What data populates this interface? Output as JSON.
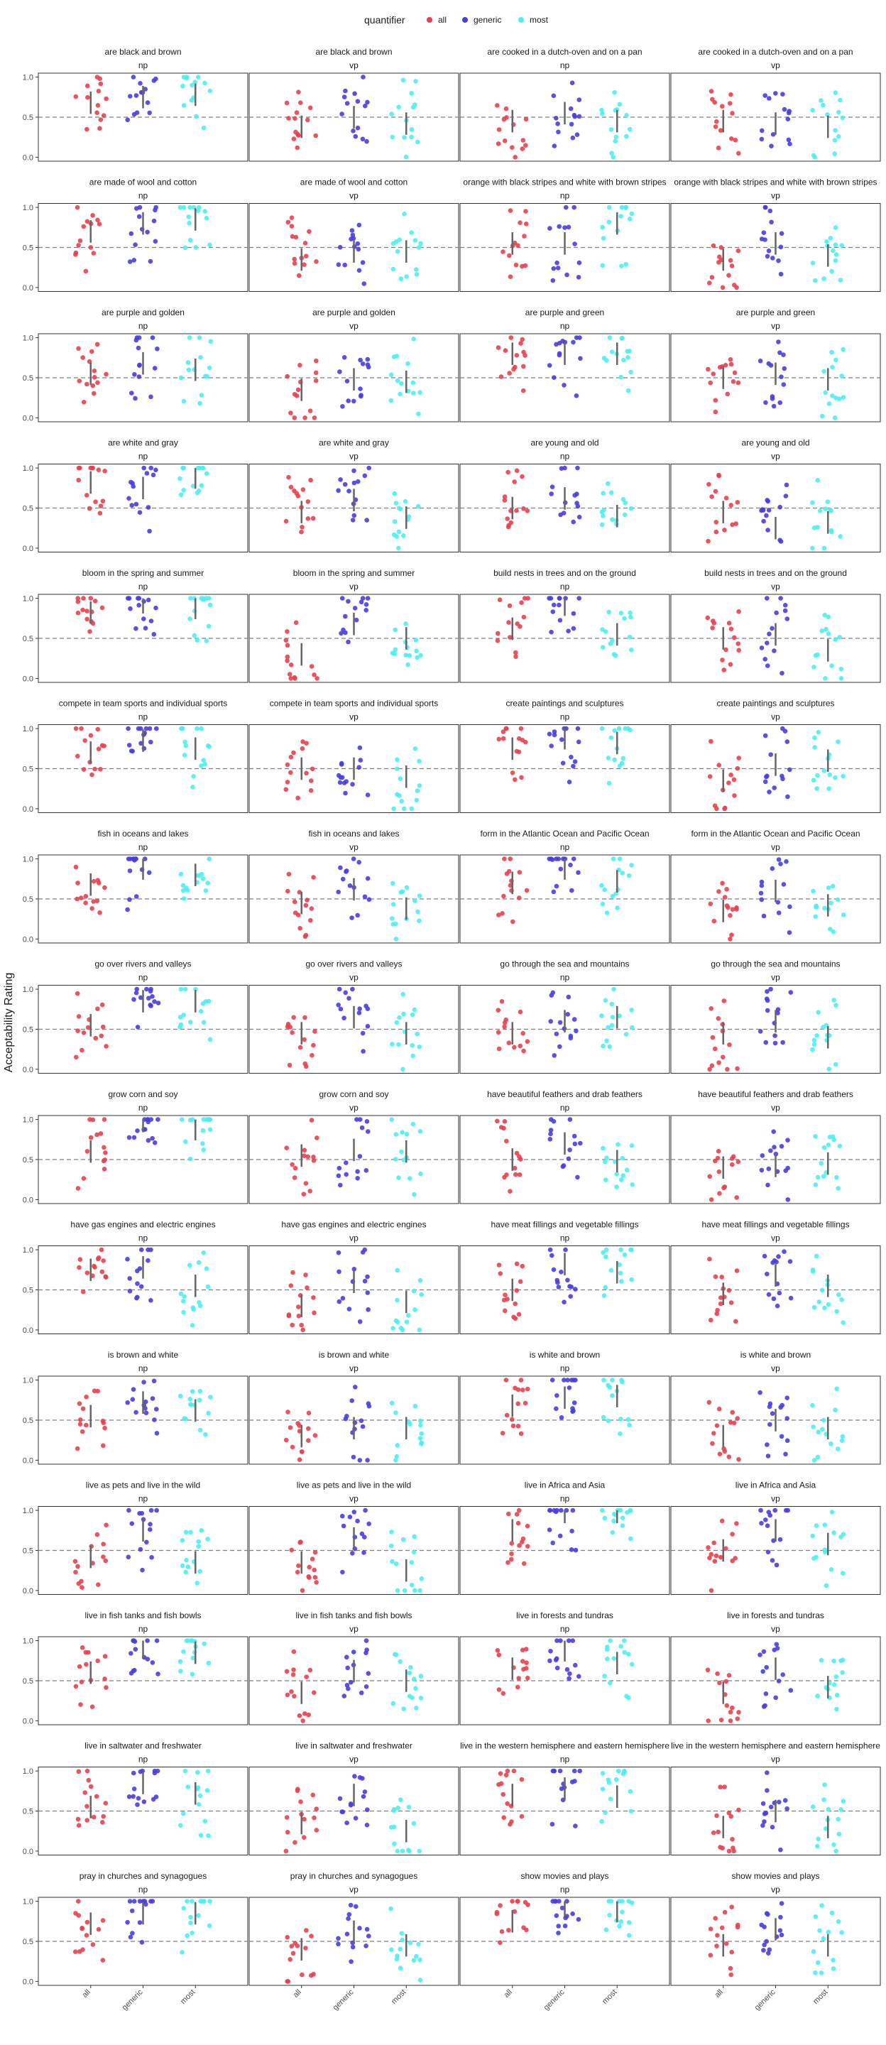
{
  "chart_data": {
    "type": "scatter",
    "ylabel": "Acceptability Rating",
    "ylim": [
      0,
      1
    ],
    "yticks": [
      "0.0",
      "0.5",
      "1.0"
    ],
    "reference_line": 0.5,
    "categories": [
      "all",
      "generic",
      "most"
    ],
    "legend": {
      "title": "quantifier",
      "placement": "top",
      "items": [
        {
          "label": "all",
          "color": "#e8404f"
        },
        {
          "label": "generic",
          "color": "#4a3de0"
        },
        {
          "label": "most",
          "color": "#4df0ee"
        }
      ]
    },
    "colors": {
      "all": "#e8404f",
      "generic": "#4a3de0",
      "most": "#4df0ee",
      "summary": "#666666",
      "dashed": "#7f7f7f"
    },
    "panels": [
      {
        "title": "are black and brown",
        "subtitle": "np",
        "median": [
          0.68,
          0.75,
          0.78
        ]
      },
      {
        "title": "are black and brown",
        "subtitle": "vp",
        "median": [
          0.38,
          0.5,
          0.42
        ]
      },
      {
        "title": "are cooked in a dutch-oven and on a pan",
        "subtitle": "np",
        "median": [
          0.45,
          0.55,
          0.45
        ]
      },
      {
        "title": "are cooked in a dutch-oven and on a pan",
        "subtitle": "vp",
        "median": [
          0.45,
          0.42,
          0.38
        ]
      },
      {
        "title": "are made of wool and cotton",
        "subtitle": "np",
        "median": [
          0.7,
          0.8,
          0.85
        ]
      },
      {
        "title": "are made of wool and cotton",
        "subtitle": "vp",
        "median": [
          0.35,
          0.45,
          0.45
        ]
      },
      {
        "title": "orange with black stripes and white with brown stripes",
        "subtitle": "np",
        "median": [
          0.55,
          0.55,
          0.8
        ]
      },
      {
        "title": "orange with black stripes and white with brown stripes",
        "subtitle": "vp",
        "median": [
          0.35,
          0.55,
          0.4
        ]
      },
      {
        "title": "are purple and golden",
        "subtitle": "np",
        "median": [
          0.55,
          0.68,
          0.6
        ]
      },
      {
        "title": "are purple and golden",
        "subtitle": "vp",
        "median": [
          0.35,
          0.48,
          0.45
        ]
      },
      {
        "title": "are purple and green",
        "subtitle": "np",
        "median": [
          0.8,
          0.8,
          0.8
        ]
      },
      {
        "title": "are purple and green",
        "subtitle": "vp",
        "median": [
          0.5,
          0.55,
          0.48
        ]
      },
      {
        "title": "are white and gray",
        "subtitle": "np",
        "median": [
          0.82,
          0.75,
          0.88
        ]
      },
      {
        "title": "are white and gray",
        "subtitle": "vp",
        "median": [
          0.45,
          0.6,
          0.38
        ]
      },
      {
        "title": "are young and old",
        "subtitle": "np",
        "median": [
          0.5,
          0.62,
          0.4
        ]
      },
      {
        "title": "are young and old",
        "subtitle": "vp",
        "median": [
          0.45,
          0.25,
          0.32
        ]
      },
      {
        "title": "bloom in the spring and summer",
        "subtitle": "np",
        "median": [
          0.82,
          0.95,
          0.88
        ]
      },
      {
        "title": "bloom in the spring and summer",
        "subtitle": "vp",
        "median": [
          0.3,
          0.68,
          0.5
        ]
      },
      {
        "title": "build nests in trees and on the ground",
        "subtitle": "np",
        "median": [
          0.62,
          0.92,
          0.55
        ]
      },
      {
        "title": "build nests in trees and on the ground",
        "subtitle": "vp",
        "median": [
          0.5,
          0.55,
          0.35
        ]
      },
      {
        "title": "compete in team sports and individual sports",
        "subtitle": "np",
        "median": [
          0.7,
          0.85,
          0.75
        ]
      },
      {
        "title": "compete in team sports and individual sports",
        "subtitle": "vp",
        "median": [
          0.5,
          0.5,
          0.4
        ]
      },
      {
        "title": "create paintings and sculptures",
        "subtitle": "np",
        "median": [
          0.75,
          0.88,
          0.82
        ]
      },
      {
        "title": "create paintings and sculptures",
        "subtitle": "vp",
        "median": [
          0.35,
          0.55,
          0.6
        ]
      },
      {
        "title": "fish in oceans and lakes",
        "subtitle": "np",
        "median": [
          0.68,
          0.88,
          0.8
        ]
      },
      {
        "title": "fish in oceans and lakes",
        "subtitle": "vp",
        "median": [
          0.45,
          0.62,
          0.38
        ]
      },
      {
        "title": "form in the Atlantic Ocean and Pacific Ocean",
        "subtitle": "np",
        "median": [
          0.7,
          0.88,
          0.72
        ]
      },
      {
        "title": "form in the Atlantic Ocean and Pacific Ocean",
        "subtitle": "vp",
        "median": [
          0.35,
          0.6,
          0.42
        ]
      },
      {
        "title": "go over rivers and valleys",
        "subtitle": "np",
        "median": [
          0.55,
          0.85,
          0.85
        ]
      },
      {
        "title": "go over rivers and valleys",
        "subtitle": "vp",
        "median": [
          0.45,
          0.65,
          0.45
        ]
      },
      {
        "title": "go through the sea and mountains",
        "subtitle": "np",
        "median": [
          0.45,
          0.6,
          0.65
        ]
      },
      {
        "title": "go through the sea and mountains",
        "subtitle": "vp",
        "median": [
          0.45,
          0.6,
          0.4
        ]
      },
      {
        "title": "grow corn and soy",
        "subtitle": "np",
        "median": [
          0.6,
          0.98,
          0.88
        ]
      },
      {
        "title": "grow corn and soy",
        "subtitle": "vp",
        "median": [
          0.55,
          0.62,
          0.6
        ]
      },
      {
        "title": "have beautiful feathers and drab feathers",
        "subtitle": "np",
        "median": [
          0.5,
          0.7,
          0.48
        ]
      },
      {
        "title": "have beautiful feathers and drab feathers",
        "subtitle": "vp",
        "median": [
          0.4,
          0.42,
          0.45
        ]
      },
      {
        "title": "have gas engines and electric engines",
        "subtitle": "np",
        "median": [
          0.75,
          0.78,
          0.55
        ]
      },
      {
        "title": "have gas engines and electric engines",
        "subtitle": "vp",
        "median": [
          0.3,
          0.6,
          0.35
        ]
      },
      {
        "title": "have meat fillings and vegetable fillings",
        "subtitle": "np",
        "median": [
          0.5,
          0.82,
          0.72
        ]
      },
      {
        "title": "have meat fillings and vegetable fillings",
        "subtitle": "vp",
        "median": [
          0.45,
          0.68,
          0.55
        ]
      },
      {
        "title": "is brown and white",
        "subtitle": "np",
        "median": [
          0.55,
          0.72,
          0.62
        ]
      },
      {
        "title": "is brown and white",
        "subtitle": "vp",
        "median": [
          0.3,
          0.4,
          0.4
        ]
      },
      {
        "title": "is white and brown",
        "subtitle": "np",
        "median": [
          0.68,
          0.78,
          0.8
        ]
      },
      {
        "title": "is white and brown",
        "subtitle": "vp",
        "median": [
          0.3,
          0.5,
          0.4
        ]
      },
      {
        "title": "live as pets and live in the wild",
        "subtitle": "np",
        "median": [
          0.42,
          0.75,
          0.35
        ]
      },
      {
        "title": "live as pets and live in the wild",
        "subtitle": "vp",
        "median": [
          0.35,
          0.65,
          0.25
        ]
      },
      {
        "title": "live in Africa and Asia",
        "subtitle": "np",
        "median": [
          0.75,
          0.98,
          0.98
        ]
      },
      {
        "title": "live in Africa and Asia",
        "subtitle": "vp",
        "median": [
          0.5,
          0.75,
          0.58
        ]
      },
      {
        "title": "live in fish tanks and fish bowls",
        "subtitle": "np",
        "median": [
          0.6,
          0.92,
          0.85
        ]
      },
      {
        "title": "live in fish tanks and fish bowls",
        "subtitle": "vp",
        "median": [
          0.35,
          0.62,
          0.5
        ]
      },
      {
        "title": "live in forests and tundras",
        "subtitle": "np",
        "median": [
          0.65,
          0.88,
          0.72
        ]
      },
      {
        "title": "live in forests and tundras",
        "subtitle": "vp",
        "median": [
          0.35,
          0.65,
          0.42
        ]
      },
      {
        "title": "live in saltwater and freshwater",
        "subtitle": "np",
        "median": [
          0.55,
          0.85,
          0.72
        ]
      },
      {
        "title": "live in saltwater and freshwater",
        "subtitle": "vp",
        "median": [
          0.35,
          0.7,
          0.25
        ]
      },
      {
        "title": "live in the western hemisphere and eastern hemisphere",
        "subtitle": "np",
        "median": [
          0.7,
          0.78,
          0.68
        ]
      },
      {
        "title": "live in the western hemisphere and eastern hemisphere",
        "subtitle": "vp",
        "median": [
          0.3,
          0.5,
          0.3
        ]
      },
      {
        "title": "pray in churches and synagogues",
        "subtitle": "np",
        "median": [
          0.72,
          0.85,
          0.85
        ]
      },
      {
        "title": "pray in churches and synagogues",
        "subtitle": "vp",
        "median": [
          0.4,
          0.62,
          0.45
        ]
      },
      {
        "title": "show movies and plays",
        "subtitle": "np",
        "median": [
          0.75,
          0.95,
          0.88
        ]
      },
      {
        "title": "show movies and plays",
        "subtitle": "vp",
        "median": [
          0.45,
          0.65,
          0.45
        ]
      }
    ]
  }
}
